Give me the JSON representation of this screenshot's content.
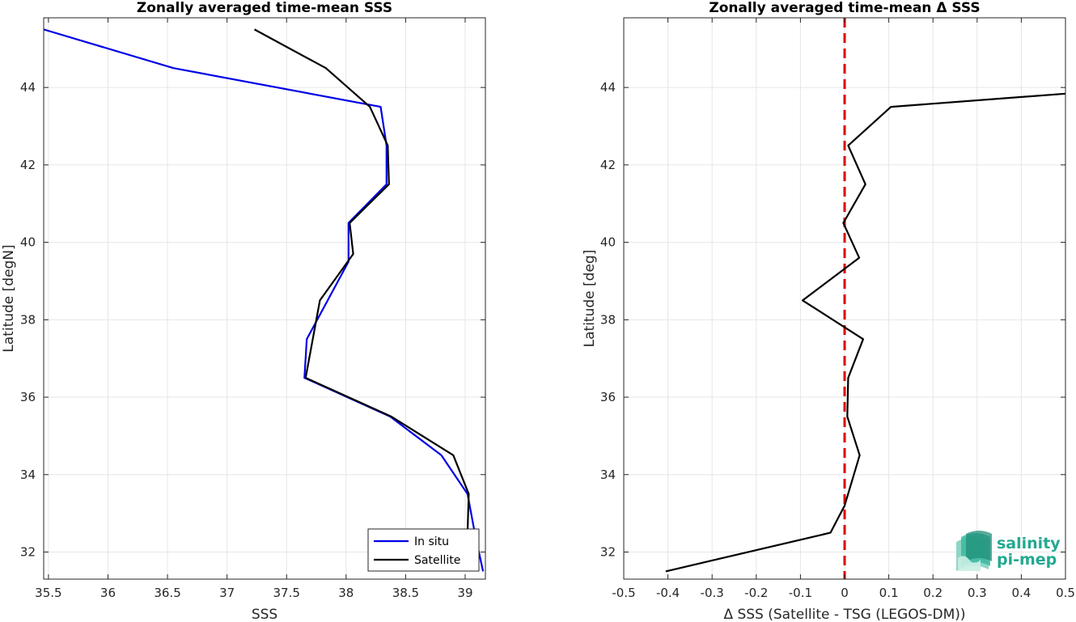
{
  "chart_data": [
    {
      "type": "line",
      "title": "Zonally averaged time-mean SSS",
      "xlabel": "SSS",
      "ylabel": "Latitude [degN]",
      "xlim": [
        35.46,
        39.17
      ],
      "ylim": [
        31.3,
        45.8
      ],
      "xticks": [
        "35.5",
        "36",
        "36.5",
        "37",
        "37.5",
        "38",
        "38.5",
        "39"
      ],
      "yticks": [
        "32",
        "34",
        "36",
        "38",
        "40",
        "42",
        "44"
      ],
      "xtick_values": [
        35.5,
        36,
        36.5,
        37,
        37.5,
        38,
        38.5,
        39
      ],
      "ytick_values": [
        32,
        34,
        36,
        38,
        40,
        42,
        44
      ],
      "grid": true,
      "legend": "bottom-right",
      "series": [
        {
          "name": "In situ",
          "color": "#0000e6",
          "points": [
            [
              35.46,
              45.5
            ],
            [
              36.55,
              44.5
            ],
            [
              38.29,
              43.5
            ],
            [
              38.34,
              42.5
            ],
            [
              38.34,
              41.5
            ],
            [
              38.02,
              40.5
            ],
            [
              38.02,
              39.5
            ],
            [
              37.67,
              37.5
            ],
            [
              37.65,
              36.5
            ],
            [
              38.37,
              35.5
            ],
            [
              38.8,
              34.5
            ],
            [
              39.02,
              33.5
            ],
            [
              39.08,
              32.5
            ],
            [
              39.15,
              31.5
            ]
          ]
        },
        {
          "name": "Satellite",
          "color": "#000000",
          "points": [
            [
              37.23,
              45.5
            ],
            [
              37.83,
              44.5
            ],
            [
              38.2,
              43.5
            ],
            [
              38.35,
              42.5
            ],
            [
              38.36,
              41.5
            ],
            [
              38.03,
              40.5
            ],
            [
              38.06,
              39.7
            ],
            [
              37.78,
              38.5
            ],
            [
              37.66,
              36.5
            ],
            [
              38.38,
              35.5
            ],
            [
              38.9,
              34.5
            ],
            [
              39.03,
              33.5
            ],
            [
              39.02,
              32.5
            ],
            [
              39.02,
              31.5
            ]
          ]
        }
      ]
    },
    {
      "type": "line",
      "title": "Zonally averaged time-mean Δ SSS",
      "xlabel": "Δ SSS (Satellite - TSG (LEGOS-DM))",
      "ylabel": "Latitude [deg]",
      "xlim": [
        -0.5,
        0.5
      ],
      "ylim": [
        31.3,
        45.8
      ],
      "xticks": [
        "-0.5",
        "-0.4",
        "-0.3",
        "-0.2",
        "-0.1",
        "0",
        "0.1",
        "0.2",
        "0.3",
        "0.4",
        "0.5"
      ],
      "yticks": [
        "32",
        "34",
        "36",
        "38",
        "40",
        "42",
        "44"
      ],
      "xtick_values": [
        -0.5,
        -0.4,
        -0.3,
        -0.2,
        -0.1,
        0,
        0.1,
        0.2,
        0.3,
        0.4,
        0.5
      ],
      "ytick_values": [
        32,
        34,
        36,
        38,
        40,
        42,
        44
      ],
      "grid": true,
      "reference_line": {
        "x": 0,
        "color": "#e00000",
        "style": "dashed"
      },
      "series": [
        {
          "color": "#000000",
          "points": [
            [
              0.5,
              43.84
            ],
            [
              0.105,
              43.5
            ],
            [
              0.008,
              42.5
            ],
            [
              0.047,
              41.5
            ],
            [
              -0.003,
              40.5
            ],
            [
              0.033,
              39.6
            ],
            [
              -0.095,
              38.5
            ],
            [
              0.042,
              37.5
            ],
            [
              0.008,
              36.5
            ],
            [
              0.006,
              35.5
            ],
            [
              0.034,
              34.5
            ],
            [
              0.0,
              33.2
            ],
            [
              -0.032,
              32.5
            ],
            [
              -0.405,
              31.5
            ]
          ]
        }
      ]
    }
  ],
  "logo": {
    "line1": "salinity",
    "line2": "pi-mep",
    "color": "#23a991"
  }
}
